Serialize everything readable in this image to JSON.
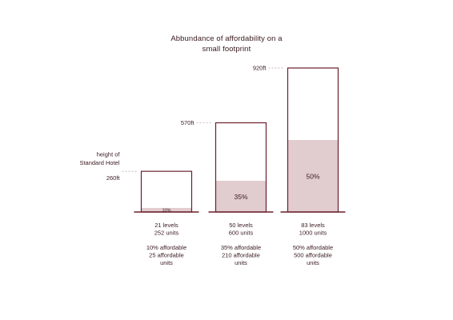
{
  "chart_data": {
    "type": "bar",
    "title_line1": "Abbundance of affordability on a",
    "title_line2": "small footprint",
    "unit": "ft",
    "colors": {
      "ink": "#6b1f2a",
      "text": "#3a1a20",
      "fill": "#e1ccd0",
      "dash": "#c9b6ba"
    },
    "bars": [
      {
        "height": 260,
        "height_label": "260ft",
        "height_note": [
          "height of",
          "Standard Hotel"
        ],
        "affordable_pct": 10,
        "pct_label": "10%",
        "info1": [
          "21 levels",
          "252 units"
        ],
        "info2": [
          "10% affordable",
          "25 affordable",
          "units"
        ]
      },
      {
        "height": 570,
        "height_label": "570ft",
        "height_note": [],
        "affordable_pct": 35,
        "pct_label": "35%",
        "info1": [
          "50 levels",
          "600 units"
        ],
        "info2": [
          "35% affordable",
          "210 affordable",
          "units"
        ]
      },
      {
        "height": 920,
        "height_label": "920ft",
        "height_note": [],
        "affordable_pct": 50,
        "pct_label": "50%",
        "info1": [
          "83 levels",
          "1000 units"
        ],
        "info2": [
          "50% affordable",
          "500 affordable",
          "units"
        ]
      }
    ]
  }
}
